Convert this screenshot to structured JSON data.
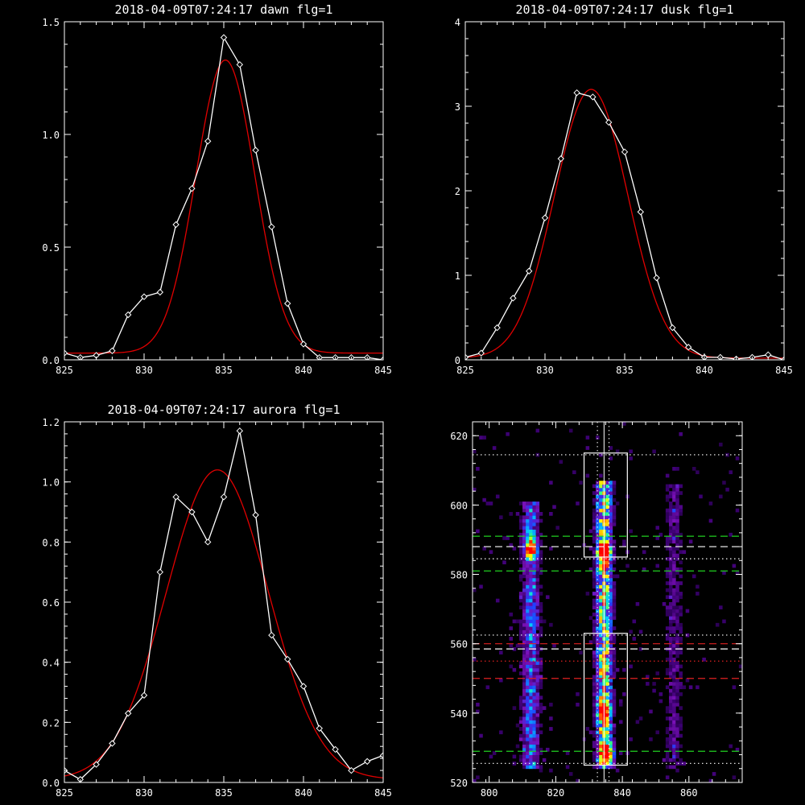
{
  "chart_data": [
    {
      "type": "line",
      "title": "2018-04-09T07:24:17 dawn flg=1",
      "xlim": [
        825,
        845
      ],
      "ylim": [
        0,
        1.5
      ],
      "xticks": [
        "825",
        "830",
        "835",
        "840",
        "845"
      ],
      "xtick_values": [
        825,
        830,
        835,
        840,
        845
      ],
      "yticks": [
        "0.0",
        "0.5",
        "1.0",
        "1.5"
      ],
      "ytick_values": [
        0,
        0.5,
        1.0,
        1.5
      ],
      "series": [
        {
          "style": "data",
          "color": "#ffffff",
          "marker": "diamond",
          "x": [
            825,
            826,
            827,
            828,
            829,
            830,
            831,
            832,
            833,
            834,
            835,
            836,
            837,
            838,
            839,
            840,
            841,
            842,
            843,
            844,
            845
          ],
          "y": [
            0.03,
            0.01,
            0.02,
            0.04,
            0.2,
            0.28,
            0.3,
            0.6,
            0.76,
            0.97,
            1.43,
            1.31,
            0.93,
            0.59,
            0.25,
            0.07,
            0.01,
            0.01,
            0.01,
            0.01,
            0.0
          ]
        },
        {
          "style": "fit",
          "color": "#e00000",
          "gaussian": {
            "amplitude": 1.3,
            "center": 835.1,
            "sigma": 1.85,
            "offset": 0.03
          }
        }
      ]
    },
    {
      "type": "line",
      "title": "2018-04-09T07:24:17 dusk flg=1",
      "xlim": [
        825,
        845
      ],
      "ylim": [
        0,
        4
      ],
      "xticks": [
        "825",
        "830",
        "835",
        "840",
        "845"
      ],
      "xtick_values": [
        825,
        830,
        835,
        840,
        845
      ],
      "yticks": [
        "0",
        "1",
        "2",
        "3",
        "4"
      ],
      "ytick_values": [
        0,
        1,
        2,
        3,
        4
      ],
      "series": [
        {
          "style": "data",
          "color": "#ffffff",
          "marker": "diamond",
          "x": [
            825,
            826,
            827,
            828,
            829,
            830,
            831,
            832,
            833,
            834,
            835,
            836,
            837,
            838,
            839,
            840,
            841,
            842,
            843,
            844,
            845
          ],
          "y": [
            0.03,
            0.08,
            0.38,
            0.73,
            1.05,
            1.68,
            2.38,
            3.16,
            3.11,
            2.81,
            2.46,
            1.75,
            0.97,
            0.38,
            0.15,
            0.03,
            0.03,
            0.01,
            0.03,
            0.06,
            0.0
          ]
        },
        {
          "style": "fit",
          "color": "#e00000",
          "gaussian": {
            "amplitude": 3.18,
            "center": 832.9,
            "sigma": 2.3,
            "offset": 0.02
          }
        }
      ]
    },
    {
      "type": "line",
      "title": "2018-04-09T07:24:17 aurora flg=1",
      "xlim": [
        825,
        845
      ],
      "ylim": [
        0,
        1.2
      ],
      "xticks": [
        "825",
        "830",
        "835",
        "840",
        "845"
      ],
      "xtick_values": [
        825,
        830,
        835,
        840,
        845
      ],
      "yticks": [
        "0.0",
        "0.2",
        "0.4",
        "0.6",
        "0.8",
        "1.0",
        "1.2"
      ],
      "ytick_values": [
        0,
        0.2,
        0.4,
        0.6,
        0.8,
        1.0,
        1.2
      ],
      "series": [
        {
          "style": "data",
          "color": "#ffffff",
          "marker": "diamond",
          "x": [
            825,
            826,
            827,
            828,
            829,
            830,
            831,
            832,
            833,
            834,
            835,
            836,
            837,
            838,
            839,
            840,
            841,
            842,
            843,
            844,
            845
          ],
          "y": [
            0.04,
            0.01,
            0.06,
            0.13,
            0.23,
            0.29,
            0.7,
            0.95,
            0.9,
            0.8,
            0.95,
            1.17,
            0.89,
            0.49,
            0.41,
            0.32,
            0.18,
            0.11,
            0.04,
            0.07,
            0.09
          ]
        },
        {
          "style": "fit",
          "color": "#e00000",
          "gaussian": {
            "amplitude": 1.03,
            "center": 834.6,
            "sigma": 3.2,
            "offset": 0.01
          }
        }
      ]
    },
    {
      "type": "heatmap",
      "xlim": [
        795,
        876
      ],
      "ylim": [
        520,
        624
      ],
      "xticks": [
        "800",
        "820",
        "840",
        "860"
      ],
      "xtick_values": [
        800,
        820,
        840,
        860
      ],
      "yticks": [
        "520",
        "540",
        "560",
        "580",
        "600",
        "620"
      ],
      "ytick_values": [
        520,
        540,
        560,
        580,
        600,
        620
      ],
      "colormap": [
        "#000000",
        "#3a0070",
        "#7a10b8",
        "#2040ff",
        "#00c8ff",
        "#30ff80",
        "#ffff00",
        "#ff8000",
        "#ff0000"
      ],
      "emission_columns": [
        {
          "center": 812,
          "width": 1.8,
          "intensity": 0.45,
          "y_range": [
            524,
            600
          ]
        },
        {
          "center": 834,
          "width": 1.6,
          "intensity": 0.8,
          "y_range": [
            524,
            606
          ]
        },
        {
          "center": 855,
          "width": 1.8,
          "intensity": 0.2,
          "y_range": [
            524,
            605
          ]
        }
      ],
      "hotspots": [
        {
          "x": 834,
          "y": 586,
          "intensity": 1.0
        },
        {
          "x": 812,
          "y": 587,
          "intensity": 0.75
        },
        {
          "x": 835,
          "y": 528,
          "intensity": 0.8
        },
        {
          "x": 834,
          "y": 540,
          "intensity": 0.7
        }
      ],
      "boxes": [
        {
          "x": [
            828.5,
            841.5
          ],
          "y": [
            585,
            615
          ],
          "color": "#ffffff"
        },
        {
          "x": [
            828.5,
            841.5
          ],
          "y": [
            525,
            563
          ],
          "color": "#ffffff"
        }
      ],
      "hlines": [
        {
          "y": 614.5,
          "color": "#ffffff",
          "dash": "dot"
        },
        {
          "y": 591,
          "color": "#20d020",
          "dash": "dash"
        },
        {
          "y": 588,
          "color": "#ffffff",
          "dash": "dash"
        },
        {
          "y": 584.5,
          "color": "#ffffff",
          "dash": "dot"
        },
        {
          "y": 581,
          "color": "#20d020",
          "dash": "dash"
        },
        {
          "y": 562.5,
          "color": "#ffffff",
          "dash": "dot"
        },
        {
          "y": 560,
          "color": "#e02020",
          "dash": "dash"
        },
        {
          "y": 558.5,
          "color": "#ffffff",
          "dash": "dash"
        },
        {
          "y": 555,
          "color": "#e02020",
          "dash": "dot"
        },
        {
          "y": 550,
          "color": "#e02020",
          "dash": "dash"
        },
        {
          "y": 529,
          "color": "#20d020",
          "dash": "dash"
        },
        {
          "y": 525.5,
          "color": "#ffffff",
          "dash": "dot"
        }
      ],
      "vlines": [
        {
          "x": 832.5,
          "color": "#ffffff",
          "dash": "dot"
        },
        {
          "x": 834.5,
          "color": "#ffffff",
          "dash": "solid"
        },
        {
          "x": 836,
          "color": "#ffffff",
          "dash": "dot"
        }
      ]
    }
  ]
}
